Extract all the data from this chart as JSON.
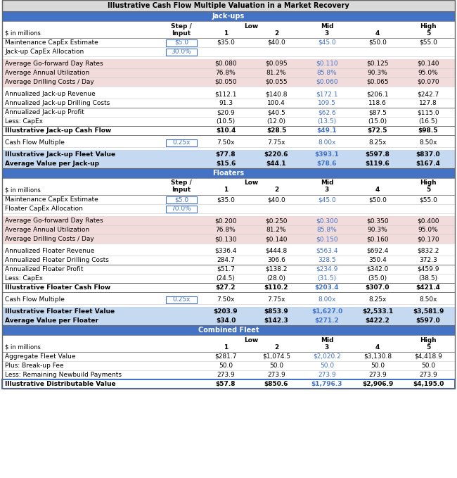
{
  "title": "Illustrative Cash Flow Multiple Valuation in a Market Recovery",
  "jackup_section_title": "Jack-ups",
  "floater_section_title": "Floaters",
  "combined_section_title": "Combined Fleet",
  "header_bg": "#4472C4",
  "light_blue_bg": "#C5D9F1",
  "beige_bg": "#F2DCDB",
  "white_bg": "#FFFFFF",
  "title_bg": "#D9D9D9",
  "blue_text": "#4472C4",
  "header_text": "#FFFFFF",
  "black_text": "#000000",
  "border_color": "#4472C4",
  "line_color": "#808080",
  "jackup_rows": [
    {
      "label": "Maintenance CapEx Estimate",
      "step": "$5.0",
      "vals": [
        "$35.0",
        "$40.0",
        "$45.0",
        "$50.0",
        "$55.0"
      ],
      "style": "input_box"
    },
    {
      "label": "Jack-up CapEx Allocation",
      "step": "30.0%",
      "vals": [
        "",
        "",
        "",
        "",
        ""
      ],
      "style": "input_box"
    },
    {
      "label": "",
      "step": "",
      "vals": [
        "",
        "",
        "",
        "",
        ""
      ],
      "style": "spacer"
    },
    {
      "label": "Average Go-forward Day Rates",
      "step": "",
      "vals": [
        "$0.080",
        "$0.095",
        "$0.110",
        "$0.125",
        "$0.140"
      ],
      "style": "beige"
    },
    {
      "label": "Average Annual Utilization",
      "step": "",
      "vals": [
        "76.8%",
        "81.2%",
        "85.8%",
        "90.3%",
        "95.0%"
      ],
      "style": "beige"
    },
    {
      "label": "Average Drilling Costs / Day",
      "step": "",
      "vals": [
        "$0.050",
        "$0.055",
        "$0.060",
        "$0.065",
        "$0.070"
      ],
      "style": "beige"
    },
    {
      "label": "",
      "step": "",
      "vals": [
        "",
        "",
        "",
        "",
        ""
      ],
      "style": "spacer"
    },
    {
      "label": "Annualized Jack-up Revenue",
      "step": "",
      "vals": [
        "$112.1",
        "$140.8",
        "$172.1",
        "$206.1",
        "$242.7"
      ],
      "style": "normal"
    },
    {
      "label": "Annualized Jack-up Drilling Costs",
      "step": "",
      "vals": [
        "91.3",
        "100.4",
        "109.5",
        "118.6",
        "127.8"
      ],
      "style": "normal"
    },
    {
      "label": "Annualized Jack-up Profit",
      "step": "",
      "vals": [
        "$20.9",
        "$40.5",
        "$62.6",
        "$87.5",
        "$115.0"
      ],
      "style": "normal",
      "top_border": true
    },
    {
      "label": "Less: CapEx",
      "step": "",
      "vals": [
        "(10.5)",
        "(12.0)",
        "(13.5)",
        "(15.0)",
        "(16.5)"
      ],
      "style": "normal"
    },
    {
      "label": "Illustrative Jack-up Cash Flow",
      "step": "",
      "vals": [
        "$10.4",
        "$28.5",
        "$49.1",
        "$72.5",
        "$98.5"
      ],
      "style": "bold",
      "top_border": true,
      "bot_border": true
    },
    {
      "label": "",
      "step": "",
      "vals": [
        "",
        "",
        "",
        "",
        ""
      ],
      "style": "spacer"
    },
    {
      "label": "Cash Flow Multiple",
      "step": "0.25x",
      "vals": [
        "7.50x",
        "7.75x",
        "8.00x",
        "8.25x",
        "8.50x"
      ],
      "style": "input_box_single"
    },
    {
      "label": "",
      "step": "",
      "vals": [
        "",
        "",
        "",
        "",
        ""
      ],
      "style": "spacer"
    },
    {
      "label": "Illustrative Jack-up Fleet Value",
      "step": "",
      "vals": [
        "$77.8",
        "$220.6",
        "$393.1",
        "$597.8",
        "$837.0"
      ],
      "style": "light_blue_bold"
    },
    {
      "label": "Average Value per Jack-up",
      "step": "",
      "vals": [
        "$15.6",
        "$44.1",
        "$78.6",
        "$119.6",
        "$167.4"
      ],
      "style": "light_blue_bold"
    }
  ],
  "floater_rows": [
    {
      "label": "Maintenance CapEx Estimate",
      "step": "$5.0",
      "vals": [
        "$35.0",
        "$40.0",
        "$45.0",
        "$50.0",
        "$55.0"
      ],
      "style": "input_box"
    },
    {
      "label": "Floater CapEx Allocation",
      "step": "70.0%",
      "vals": [
        "",
        "",
        "",
        "",
        ""
      ],
      "style": "input_box"
    },
    {
      "label": "",
      "step": "",
      "vals": [
        "",
        "",
        "",
        "",
        ""
      ],
      "style": "spacer"
    },
    {
      "label": "Average Go-forward Day Rates",
      "step": "",
      "vals": [
        "$0.200",
        "$0.250",
        "$0.300",
        "$0.350",
        "$0.400"
      ],
      "style": "beige"
    },
    {
      "label": "Average Annual Utilization",
      "step": "",
      "vals": [
        "76.8%",
        "81.2%",
        "85.8%",
        "90.3%",
        "95.0%"
      ],
      "style": "beige"
    },
    {
      "label": "Average Drilling Costs / Day",
      "step": "",
      "vals": [
        "$0.130",
        "$0.140",
        "$0.150",
        "$0.160",
        "$0.170"
      ],
      "style": "beige"
    },
    {
      "label": "",
      "step": "",
      "vals": [
        "",
        "",
        "",
        "",
        ""
      ],
      "style": "spacer"
    },
    {
      "label": "Annualized Floater Revenue",
      "step": "",
      "vals": [
        "$336.4",
        "$444.8",
        "$563.4",
        "$692.4",
        "$832.2"
      ],
      "style": "normal"
    },
    {
      "label": "Annualized Floater Drilling Costs",
      "step": "",
      "vals": [
        "284.7",
        "306.6",
        "328.5",
        "350.4",
        "372.3"
      ],
      "style": "normal"
    },
    {
      "label": "Annualized Floater Profit",
      "step": "",
      "vals": [
        "$51.7",
        "$138.2",
        "$234.9",
        "$342.0",
        "$459.9"
      ],
      "style": "normal",
      "top_border": true
    },
    {
      "label": "Less: CapEx",
      "step": "",
      "vals": [
        "(24.5)",
        "(28.0)",
        "(31.5)",
        "(35.0)",
        "(38.5)"
      ],
      "style": "normal"
    },
    {
      "label": "Illustrative Floater Cash Flow",
      "step": "",
      "vals": [
        "$27.2",
        "$110.2",
        "$203.4",
        "$307.0",
        "$421.4"
      ],
      "style": "bold",
      "top_border": true,
      "bot_border": true
    },
    {
      "label": "",
      "step": "",
      "vals": [
        "",
        "",
        "",
        "",
        ""
      ],
      "style": "spacer"
    },
    {
      "label": "Cash Flow Multiple",
      "step": "0.25x",
      "vals": [
        "7.50x",
        "7.75x",
        "8.00x",
        "8.25x",
        "8.50x"
      ],
      "style": "input_box_single"
    },
    {
      "label": "",
      "step": "",
      "vals": [
        "",
        "",
        "",
        "",
        ""
      ],
      "style": "spacer"
    },
    {
      "label": "Illustrative Floater Fleet Value",
      "step": "",
      "vals": [
        "$203.9",
        "$853.9",
        "$1,627.0",
        "$2,533.1",
        "$3,581.9"
      ],
      "style": "light_blue_bold"
    },
    {
      "label": "Average Value per Floater",
      "step": "",
      "vals": [
        "$34.0",
        "$142.3",
        "$271.2",
        "$422.2",
        "$597.0"
      ],
      "style": "light_blue_bold"
    }
  ],
  "combined_rows": [
    {
      "label": "Aggregate Fleet Value",
      "vals": [
        "$281.7",
        "$1,074.5",
        "$2,020.2",
        "$3,130.8",
        "$4,418.9"
      ],
      "style": "normal"
    },
    {
      "label": "Plus: Break-up Fee",
      "vals": [
        "50.0",
        "50.0",
        "50.0",
        "50.0",
        "50.0"
      ],
      "style": "normal"
    },
    {
      "label": "Less: Remaining Newbuild Payments",
      "vals": [
        "273.9",
        "273.9",
        "273.9",
        "273.9",
        "273.9"
      ],
      "style": "normal"
    },
    {
      "label": "Illustrative Distributable Value",
      "vals": [
        "$57.8",
        "$850.6",
        "$1,796.3",
        "$2,906.9",
        "$4,195.0"
      ],
      "style": "bold_border"
    }
  ]
}
